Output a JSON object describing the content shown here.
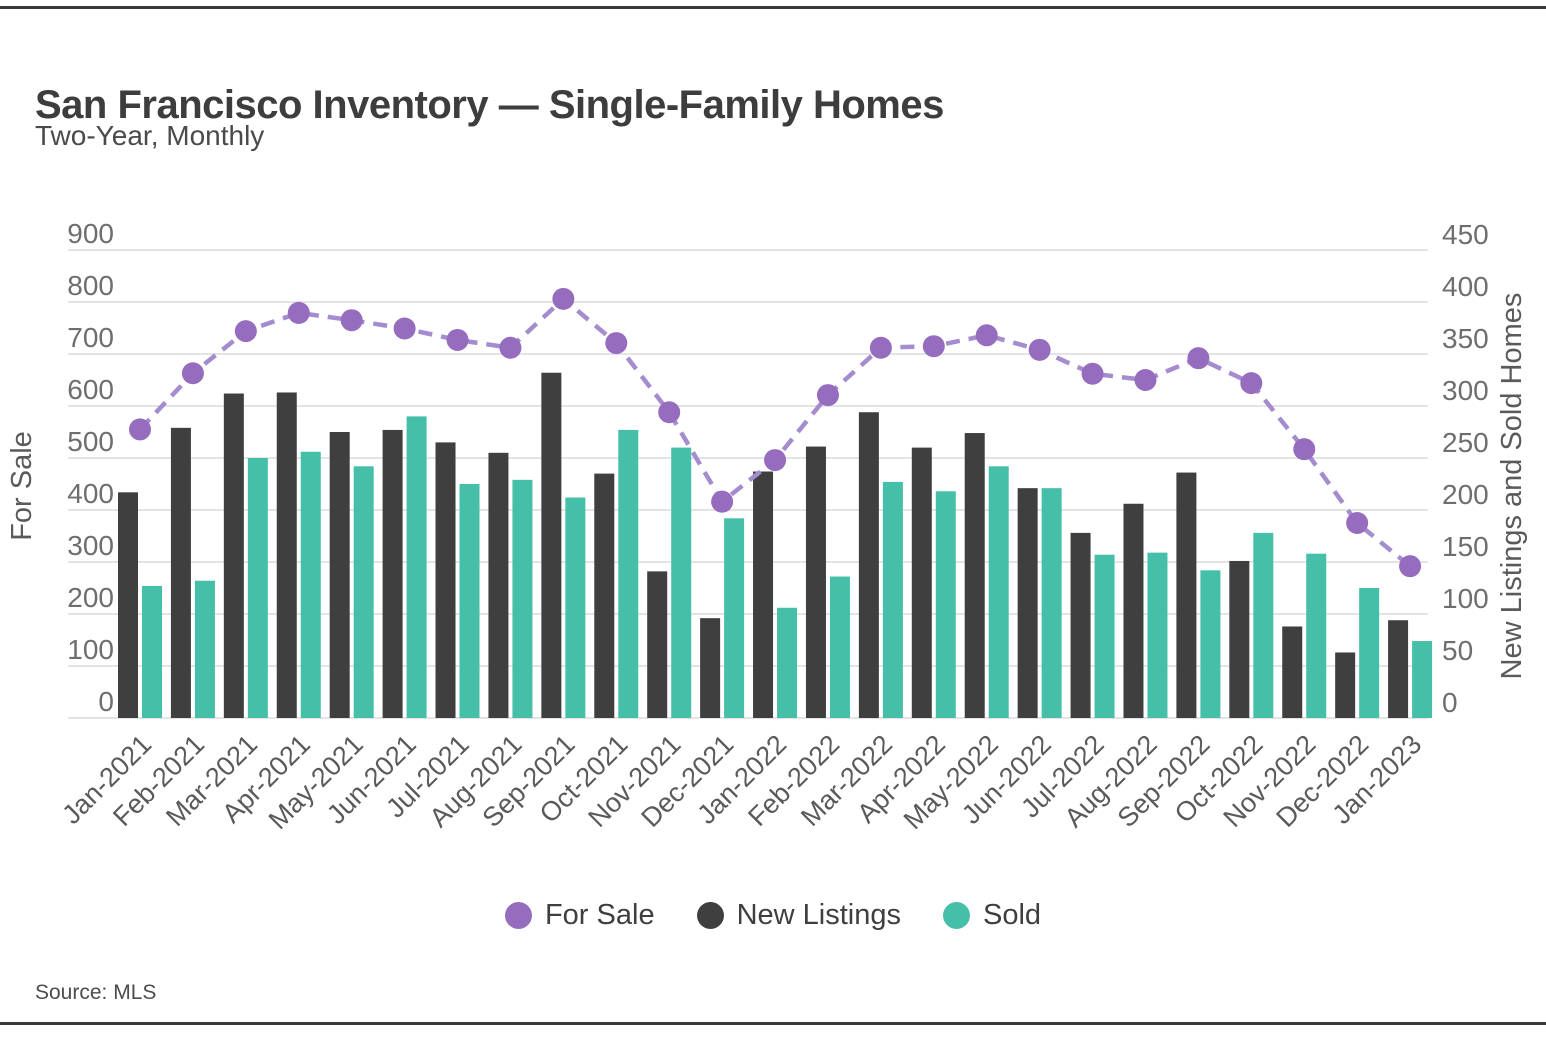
{
  "page": {
    "title": "San Francisco Inventory — Single-Family Homes",
    "subtitle": "Two-Year, Monthly",
    "source": "Source: MLS"
  },
  "colors": {
    "for_sale_marker": "#966cbe",
    "for_sale_line": "#a48cce",
    "new_listings": "#3f3f3f",
    "sold": "#45bfa8",
    "gridline": "#dcdcdc",
    "axis_text": "#6e6e6e",
    "rule": "#3a3a3a"
  },
  "chart_data": {
    "type": "combo-bar-line",
    "categories": [
      "Jan-2021",
      "Feb-2021",
      "Mar-2021",
      "Apr-2021",
      "May-2021",
      "Jun-2021",
      "Jul-2021",
      "Aug-2021",
      "Sep-2021",
      "Oct-2021",
      "Nov-2021",
      "Dec-2021",
      "Jan-2022",
      "Feb-2022",
      "Mar-2022",
      "Apr-2022",
      "May-2022",
      "Jun-2022",
      "Jul-2022",
      "Aug-2022",
      "Sep-2022",
      "Oct-2022",
      "Nov-2022",
      "Dec-2022",
      "Jan-2023"
    ],
    "series": [
      {
        "name": "For Sale",
        "type": "line",
        "axis": "left",
        "color": "#966cbe",
        "line_color": "#a48cce",
        "values": [
          555,
          663,
          744,
          779,
          765,
          749,
          727,
          712,
          806,
          721,
          588,
          416,
          496,
          621,
          712,
          715,
          736,
          708,
          662,
          650,
          692,
          644,
          517,
          375,
          292
        ]
      },
      {
        "name": "New Listings",
        "type": "bar",
        "axis": "right",
        "color": "#3f3f3f",
        "values": [
          217,
          279,
          312,
          313,
          275,
          277,
          265,
          255,
          332,
          235,
          141,
          96,
          237,
          261,
          294,
          260,
          274,
          221,
          178,
          206,
          236,
          151,
          88,
          63,
          94
        ]
      },
      {
        "name": "Sold",
        "type": "bar",
        "axis": "right",
        "color": "#45bfa8",
        "values": [
          127,
          132,
          250,
          256,
          242,
          290,
          225,
          229,
          212,
          277,
          260,
          192,
          106,
          136,
          227,
          218,
          242,
          221,
          157,
          159,
          142,
          178,
          158,
          125,
          74
        ]
      }
    ],
    "left_axis": {
      "title": "For Sale",
      "min": 0,
      "max": 900,
      "tick_step": 100
    },
    "right_axis": {
      "title": "New Listings and Sold Homes",
      "min": 0,
      "max": 450,
      "tick_step": 50
    },
    "grid": true,
    "legend_position": "bottom"
  }
}
